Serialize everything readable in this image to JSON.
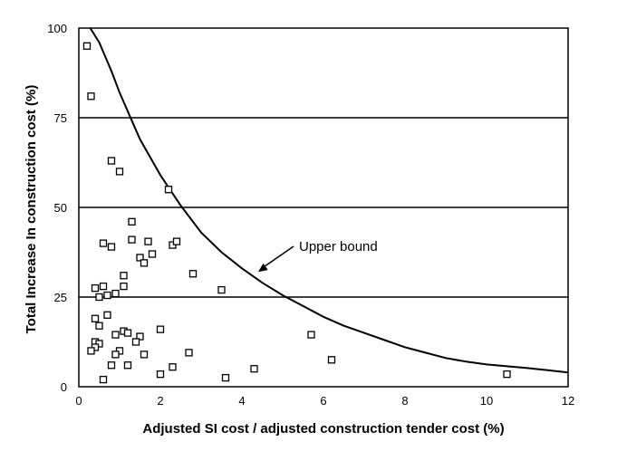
{
  "chart_data": {
    "type": "scatter",
    "title": "",
    "xlabel": "Adjusted SI cost / adjusted construction tender cost (%)",
    "ylabel": "Total Increase In construction cost (%)",
    "xlim": [
      0,
      12
    ],
    "ylim": [
      0,
      100
    ],
    "xticks": [
      "0",
      "2",
      "4",
      "6",
      "8",
      "10",
      "12"
    ],
    "yticks": [
      "0",
      "25",
      "50",
      "75",
      "100"
    ],
    "grid": "horizontal lines at 25, 50, 75",
    "marker": "open-square",
    "annotation": {
      "text": "Upper bound",
      "arrow_to": {
        "x": 4.4,
        "y": 32
      }
    },
    "upper_bound_curve": [
      {
        "x": 0.28,
        "y": 100
      },
      {
        "x": 0.5,
        "y": 96
      },
      {
        "x": 0.8,
        "y": 88
      },
      {
        "x": 1.0,
        "y": 82
      },
      {
        "x": 1.5,
        "y": 69
      },
      {
        "x": 2.0,
        "y": 59
      },
      {
        "x": 2.5,
        "y": 50.5
      },
      {
        "x": 3.0,
        "y": 43
      },
      {
        "x": 3.5,
        "y": 37.5
      },
      {
        "x": 4.0,
        "y": 33
      },
      {
        "x": 4.5,
        "y": 29
      },
      {
        "x": 5.0,
        "y": 25.5
      },
      {
        "x": 5.5,
        "y": 22.5
      },
      {
        "x": 6.0,
        "y": 19.5
      },
      {
        "x": 6.5,
        "y": 17
      },
      {
        "x": 7.0,
        "y": 15
      },
      {
        "x": 7.5,
        "y": 13
      },
      {
        "x": 8.0,
        "y": 11
      },
      {
        "x": 8.5,
        "y": 9.5
      },
      {
        "x": 9.0,
        "y": 8
      },
      {
        "x": 9.5,
        "y": 7
      },
      {
        "x": 10.0,
        "y": 6.2
      },
      {
        "x": 10.5,
        "y": 5.7
      },
      {
        "x": 11.0,
        "y": 5.2
      },
      {
        "x": 11.5,
        "y": 4.6
      },
      {
        "x": 12.0,
        "y": 4.0
      }
    ],
    "points": [
      {
        "x": 0.2,
        "y": 95
      },
      {
        "x": 0.3,
        "y": 81
      },
      {
        "x": 0.8,
        "y": 63
      },
      {
        "x": 1.0,
        "y": 60
      },
      {
        "x": 2.2,
        "y": 55
      },
      {
        "x": 1.3,
        "y": 46
      },
      {
        "x": 0.6,
        "y": 40
      },
      {
        "x": 0.8,
        "y": 39
      },
      {
        "x": 1.3,
        "y": 41
      },
      {
        "x": 1.7,
        "y": 40.5
      },
      {
        "x": 2.3,
        "y": 39.5
      },
      {
        "x": 2.4,
        "y": 40.5
      },
      {
        "x": 1.8,
        "y": 37
      },
      {
        "x": 1.5,
        "y": 36
      },
      {
        "x": 1.6,
        "y": 34.5
      },
      {
        "x": 1.1,
        "y": 31
      },
      {
        "x": 2.8,
        "y": 31.5
      },
      {
        "x": 0.4,
        "y": 27.5
      },
      {
        "x": 0.6,
        "y": 28
      },
      {
        "x": 1.1,
        "y": 28
      },
      {
        "x": 0.9,
        "y": 26
      },
      {
        "x": 0.5,
        "y": 25
      },
      {
        "x": 0.7,
        "y": 25.5
      },
      {
        "x": 3.5,
        "y": 27
      },
      {
        "x": 0.4,
        "y": 19
      },
      {
        "x": 0.7,
        "y": 20
      },
      {
        "x": 0.5,
        "y": 17
      },
      {
        "x": 1.1,
        "y": 15.5
      },
      {
        "x": 1.2,
        "y": 15
      },
      {
        "x": 0.9,
        "y": 14.5
      },
      {
        "x": 1.5,
        "y": 14
      },
      {
        "x": 1.4,
        "y": 12.5
      },
      {
        "x": 2.0,
        "y": 16
      },
      {
        "x": 0.4,
        "y": 12.5
      },
      {
        "x": 0.5,
        "y": 12
      },
      {
        "x": 0.4,
        "y": 11
      },
      {
        "x": 0.3,
        "y": 10
      },
      {
        "x": 1.0,
        "y": 10
      },
      {
        "x": 0.9,
        "y": 9
      },
      {
        "x": 1.6,
        "y": 9
      },
      {
        "x": 2.7,
        "y": 9.5
      },
      {
        "x": 0.8,
        "y": 6
      },
      {
        "x": 1.2,
        "y": 6
      },
      {
        "x": 2.3,
        "y": 5.5
      },
      {
        "x": 2.0,
        "y": 3.5
      },
      {
        "x": 0.6,
        "y": 2
      },
      {
        "x": 3.6,
        "y": 2.5
      },
      {
        "x": 4.3,
        "y": 5
      },
      {
        "x": 5.7,
        "y": 14.5
      },
      {
        "x": 6.2,
        "y": 7.5
      },
      {
        "x": 10.5,
        "y": 3.5
      }
    ]
  }
}
